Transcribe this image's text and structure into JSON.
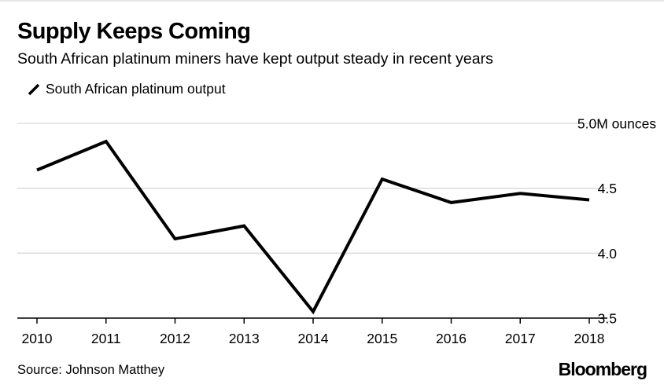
{
  "header": {
    "title": "Supply Keeps Coming",
    "subtitle": "South African platinum miners have kept output steady in recent years"
  },
  "footer": {
    "source": "Source: Johnson Matthey",
    "brand": "Bloomberg"
  },
  "colors": {
    "line": "#000000",
    "grid": "#d9d9d9",
    "axis": "#000000"
  },
  "chart_data": {
    "type": "line",
    "title": "Supply Keeps Coming",
    "subtitle": "South African platinum miners have kept output steady in recent years",
    "categories": [
      "2010",
      "2011",
      "2012",
      "2013",
      "2014",
      "2015",
      "2016",
      "2017",
      "2018"
    ],
    "series": [
      {
        "name": "South African platinum output",
        "values": [
          4.64,
          4.86,
          4.11,
          4.21,
          3.55,
          4.57,
          4.39,
          4.46,
          4.41
        ]
      }
    ],
    "ylim": [
      3.5,
      5.0
    ],
    "yticks": [
      {
        "value": 5.0,
        "label": "5.0M ounces"
      },
      {
        "value": 4.5,
        "label": "4.5"
      },
      {
        "value": 4.0,
        "label": "4.0"
      },
      {
        "value": 3.5,
        "label": "3.5"
      }
    ],
    "xlabel": "",
    "ylabel": "",
    "legend": "top-left",
    "grid": true
  }
}
